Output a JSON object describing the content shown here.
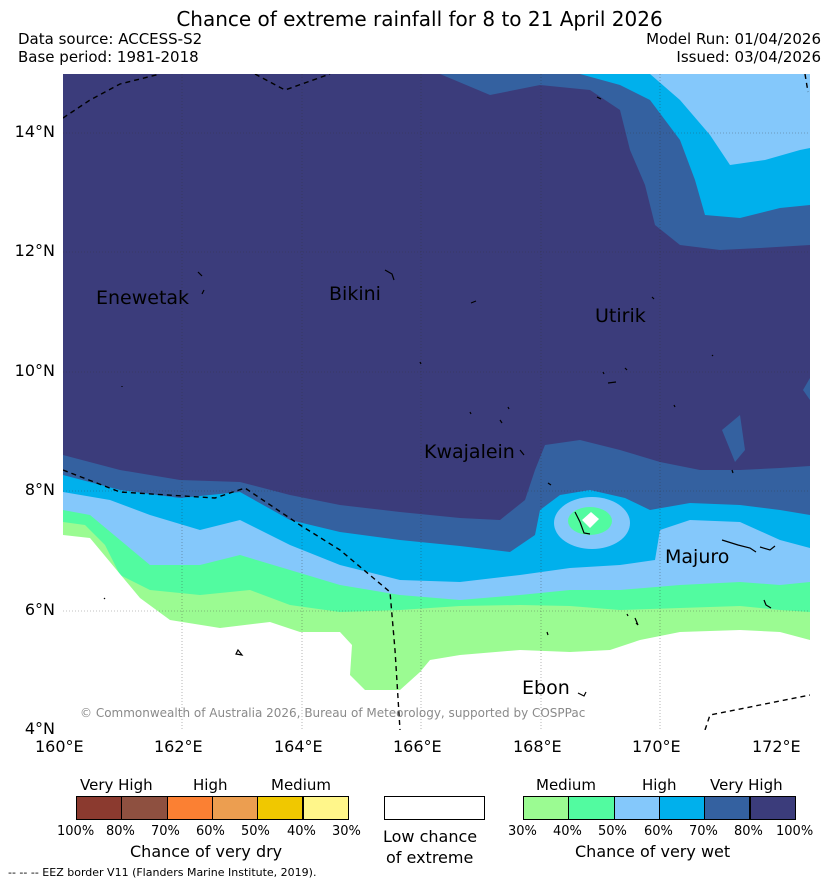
{
  "header": {
    "title": "Chance of extreme rainfall for 8 to 21 April 2026",
    "data_source": "Data source: ACCESS-S2",
    "base_period": "Base period: 1981-2018",
    "model_run": "Model Run: 01/04/2026",
    "issued": "Issued: 03/04/2026"
  },
  "map": {
    "lat_labels": [
      "14°N",
      "12°N",
      "10°N",
      "8°N",
      "6°N",
      "4°N"
    ],
    "lon_labels": [
      "160°E",
      "162°E",
      "164°E",
      "166°E",
      "168°E",
      "170°E",
      "172°E"
    ],
    "places": {
      "enewetak": "Enewetak",
      "bikini": "Bikini",
      "utirik": "Utirik",
      "kwajalein": "Kwajalein",
      "majuro": "Majuro",
      "ebon": "Ebon"
    },
    "copyright": "© Commonwealth of Australia 2026, Bureau of Meteorology, supported by COSPPac"
  },
  "legend": {
    "dry": {
      "title": "Chance of very dry",
      "levels": [
        "Very High",
        "High",
        "Medium"
      ],
      "ticks": [
        "100%",
        "80%",
        "70%",
        "60%",
        "50%",
        "40%",
        "30%"
      ],
      "colors": [
        "#8b3a2f",
        "#8e5040",
        "#fb8033",
        "#ec9e50",
        "#f0c800",
        "#fff68a"
      ]
    },
    "low": {
      "line1": "Low chance",
      "line2": "of extreme",
      "color": "#ffffff"
    },
    "wet": {
      "title": "Chance of very wet",
      "levels": [
        "Medium",
        "High",
        "Very High"
      ],
      "ticks": [
        "30%",
        "40%",
        "50%",
        "60%",
        "70%",
        "80%",
        "100%"
      ],
      "colors": [
        "#9bfb92",
        "#52fba0",
        "#84c8fb",
        "#00b0ec",
        "#3461a0",
        "#3b3c7b"
      ]
    },
    "eez_note": "-- -- -- EEZ border V11 (Flanders Marine Institute, 2019)."
  }
}
